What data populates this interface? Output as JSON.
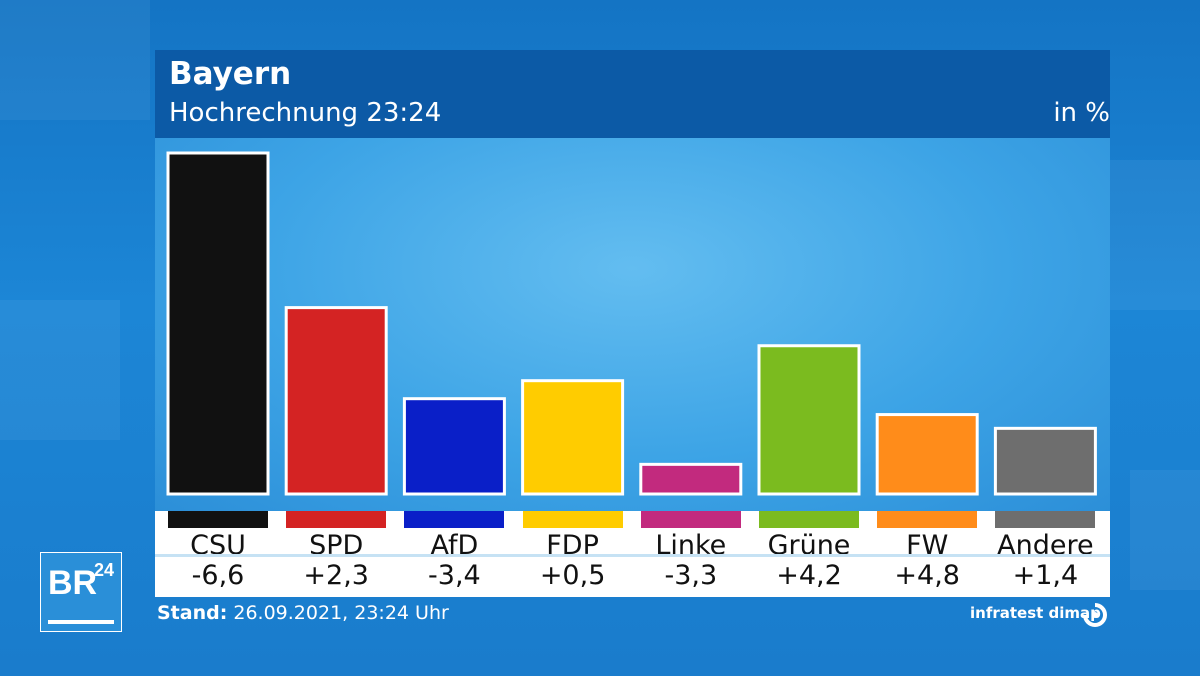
{
  "header": {
    "title": "Bayern",
    "subtitle": "Hochrechnung 23:24",
    "unit": "in %"
  },
  "footer": {
    "stand_label": "Stand:",
    "stand_value": "26.09.2021, 23:24 Uhr",
    "source": "infratest dimap"
  },
  "logo": {
    "text": "BR",
    "superscript": "24"
  },
  "chart_data": {
    "type": "bar",
    "categories": [
      "CSU",
      "SPD",
      "AfD",
      "FDP",
      "Linke",
      "Grüne",
      "FW",
      "Andere"
    ],
    "values": [
      32.2,
      17.6,
      9.0,
      10.7,
      2.8,
      14.0,
      7.5,
      6.2
    ],
    "value_labels": [
      "32,2",
      "17,6",
      "9,0",
      "10,7",
      "2,8",
      "14,0",
      "7,5",
      "6,2"
    ],
    "changes": [
      -6.6,
      2.3,
      -3.4,
      0.5,
      -3.3,
      4.2,
      4.8,
      1.4
    ],
    "change_labels": [
      "-6,6",
      "+2,3",
      "-3,4",
      "+0,5",
      "-3,3",
      "+4,2",
      "+4,8",
      "+1,4"
    ],
    "colors": [
      "#111111",
      "#d42323",
      "#0a1fc8",
      "#ffcc00",
      "#c22a7e",
      "#7bbb1f",
      "#ff8c1a",
      "#6e6e6e"
    ],
    "title": "Bayern",
    "subtitle": "Hochrechnung 23:24",
    "ylabel": "in %",
    "ylim": [
      0,
      32.2
    ],
    "grid": false,
    "legend": "none"
  }
}
